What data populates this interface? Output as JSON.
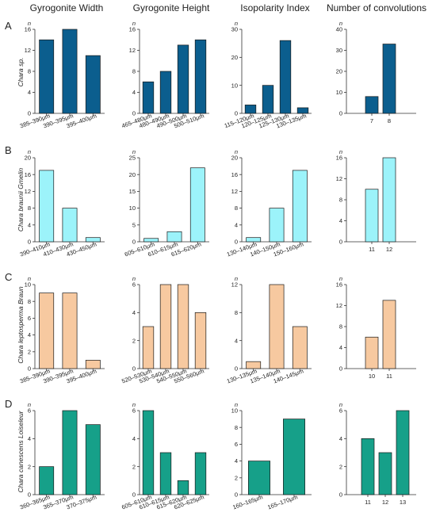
{
  "figure": {
    "column_titles": [
      "Gyrogonite Width",
      "Gyrogonite Height",
      "Isopolarity Index",
      "Number of convolutions"
    ],
    "rows": [
      {
        "label": "A",
        "species": "Chara sp.",
        "color": "#0b5e8e"
      },
      {
        "label": "B",
        "species": "Chara braunii Gmelin",
        "color": "#9cf3fa"
      },
      {
        "label": "C",
        "species": "Chara leptosperma Braun",
        "color": "#f7c9a0"
      },
      {
        "label": "D",
        "species": "Chara canescens Loiseleur",
        "color": "#16a089"
      }
    ],
    "y_axis_label": "n"
  },
  "chart_data": [
    {
      "type": "bar",
      "panel": "A1",
      "categories": [
        "385–390μm",
        "390–395μm",
        "395–400μm"
      ],
      "values": [
        14,
        16,
        11
      ],
      "ylim": [
        0,
        16
      ],
      "yticks": [
        0,
        4,
        8,
        12,
        16
      ],
      "ylabel": "n"
    },
    {
      "type": "bar",
      "panel": "A2",
      "categories": [
        "465–480μm",
        "480–490μm",
        "490–500μm",
        "500–510μm"
      ],
      "values": [
        6,
        8,
        13,
        14
      ],
      "ylim": [
        0,
        16
      ],
      "yticks": [
        0,
        4,
        8,
        12,
        16
      ],
      "ylabel": "n"
    },
    {
      "type": "bar",
      "panel": "A3",
      "categories": [
        "115–120μm",
        "120–125μm",
        "125–130μm",
        "130–135μm"
      ],
      "values": [
        3,
        10,
        26,
        2
      ],
      "ylim": [
        0,
        30
      ],
      "yticks": [
        0,
        10,
        20,
        30
      ],
      "ylabel": "n"
    },
    {
      "type": "bar",
      "panel": "A4",
      "categories": [
        "7",
        "8"
      ],
      "values": [
        8,
        33
      ],
      "ylim": [
        0,
        40
      ],
      "yticks": [
        0,
        10,
        20,
        30,
        40
      ],
      "ylabel": "n"
    },
    {
      "type": "bar",
      "panel": "B1",
      "categories": [
        "390–410μm",
        "410–430μm",
        "430–450μm"
      ],
      "values": [
        17,
        8,
        1
      ],
      "ylim": [
        0,
        20
      ],
      "yticks": [
        0,
        4,
        8,
        12,
        16,
        20
      ],
      "ylabel": "n"
    },
    {
      "type": "bar",
      "panel": "B2",
      "categories": [
        "605–610μm",
        "610–615μm",
        "615–620μm"
      ],
      "values": [
        1,
        3,
        22
      ],
      "ylim": [
        0,
        25
      ],
      "yticks": [
        0,
        5,
        10,
        15,
        20,
        25
      ],
      "ylabel": "n"
    },
    {
      "type": "bar",
      "panel": "B3",
      "categories": [
        "130–140μm",
        "140–150μm",
        "150–160μm"
      ],
      "values": [
        1,
        8,
        17
      ],
      "ylim": [
        0,
        20
      ],
      "yticks": [
        0,
        4,
        8,
        12,
        16,
        20
      ],
      "ylabel": "n"
    },
    {
      "type": "bar",
      "panel": "B4",
      "categories": [
        "11",
        "12"
      ],
      "values": [
        10,
        16
      ],
      "ylim": [
        0,
        16
      ],
      "yticks": [
        0,
        4,
        8,
        12,
        16
      ],
      "ylabel": "n"
    },
    {
      "type": "bar",
      "panel": "C1",
      "categories": [
        "385–390μm",
        "390–395μm",
        "395–400μm"
      ],
      "values": [
        9,
        9,
        1
      ],
      "ylim": [
        0,
        10
      ],
      "yticks": [
        0,
        2,
        4,
        6,
        8,
        10
      ],
      "ylabel": "n"
    },
    {
      "type": "bar",
      "panel": "C2",
      "categories": [
        "520–530μm",
        "530–540μm",
        "540–550μm",
        "550–560μm"
      ],
      "values": [
        3,
        6,
        6,
        4
      ],
      "ylim": [
        0,
        6
      ],
      "yticks": [
        0,
        2,
        4,
        6
      ],
      "ylabel": "n"
    },
    {
      "type": "bar",
      "panel": "C3",
      "categories": [
        "130–135μm",
        "135–140μm",
        "140–145μm"
      ],
      "values": [
        1,
        12,
        6
      ],
      "ylim": [
        0,
        12
      ],
      "yticks": [
        0,
        4,
        8,
        12
      ],
      "ylabel": "n"
    },
    {
      "type": "bar",
      "panel": "C4",
      "categories": [
        "10",
        "11"
      ],
      "values": [
        6,
        13
      ],
      "ylim": [
        0,
        16
      ],
      "yticks": [
        0,
        4,
        8,
        12,
        16
      ],
      "ylabel": "n"
    },
    {
      "type": "bar",
      "panel": "D1",
      "categories": [
        "360–365μm",
        "365–370μm",
        "370–375μm"
      ],
      "values": [
        2,
        6,
        5
      ],
      "ylim": [
        0,
        6
      ],
      "yticks": [
        0,
        2,
        4,
        6
      ],
      "ylabel": "n"
    },
    {
      "type": "bar",
      "panel": "D2",
      "categories": [
        "605–610μm",
        "610–615μm",
        "615–620μm",
        "620–625μm"
      ],
      "values": [
        6,
        3,
        1,
        3
      ],
      "ylim": [
        0,
        6
      ],
      "yticks": [
        0,
        2,
        4,
        6
      ],
      "ylabel": "n"
    },
    {
      "type": "bar",
      "panel": "D3",
      "categories": [
        "160–165μm",
        "165–170μm"
      ],
      "values": [
        4,
        9
      ],
      "ylim": [
        0,
        10
      ],
      "yticks": [
        0,
        2,
        4,
        6,
        8,
        10
      ],
      "ylabel": "n"
    },
    {
      "type": "bar",
      "panel": "D4",
      "categories": [
        "11",
        "12",
        "13"
      ],
      "values": [
        4,
        3,
        6
      ],
      "ylim": [
        0,
        6
      ],
      "yticks": [
        0,
        2,
        4,
        6
      ],
      "ylabel": "n"
    }
  ]
}
